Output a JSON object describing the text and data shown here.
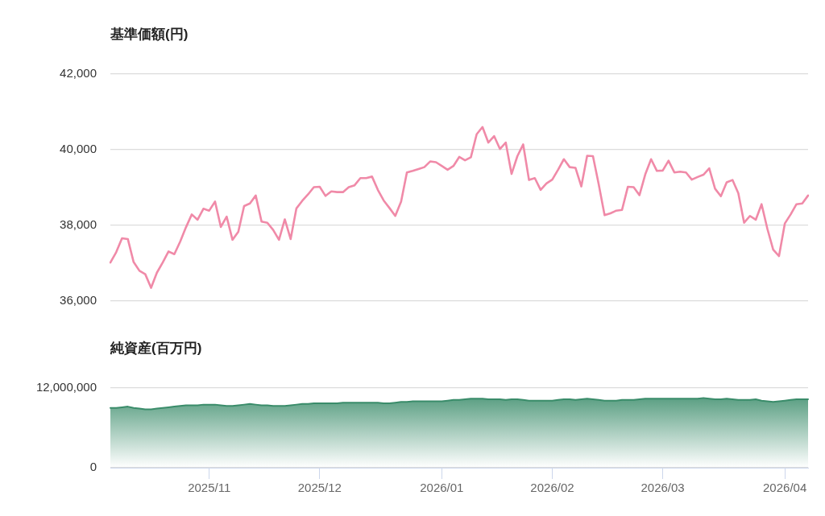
{
  "chart_data": [
    {
      "type": "line",
      "title": "基準価額(円)",
      "categories": [
        null,
        null,
        null,
        null,
        null,
        null,
        null,
        null,
        null,
        null,
        null,
        null,
        null,
        null,
        null,
        null,
        null,
        "2025/11",
        null,
        null,
        null,
        null,
        null,
        null,
        null,
        null,
        null,
        null,
        null,
        null,
        null,
        null,
        null,
        null,
        null,
        null,
        "2025/12",
        null,
        null,
        null,
        null,
        null,
        null,
        null,
        null,
        null,
        null,
        null,
        null,
        null,
        null,
        null,
        null,
        null,
        null,
        null,
        null,
        "2026/01",
        null,
        null,
        null,
        null,
        null,
        null,
        null,
        null,
        null,
        null,
        null,
        null,
        null,
        null,
        null,
        null,
        null,
        null,
        "2026/02",
        null,
        null,
        null,
        null,
        null,
        null,
        null,
        null,
        null,
        null,
        null,
        null,
        null,
        null,
        null,
        null,
        null,
        null,
        "2026/03",
        null,
        null,
        null,
        null,
        null,
        null,
        null,
        null,
        null,
        null,
        null,
        null,
        null,
        null,
        null,
        null,
        null,
        null,
        null,
        null,
        "2026/04",
        null,
        null,
        null,
        null
      ],
      "values": [
        37020,
        37290,
        37660,
        37640,
        37030,
        36800,
        36710,
        36350,
        36750,
        37020,
        37310,
        37240,
        37570,
        37950,
        38290,
        38150,
        38440,
        38390,
        38630,
        37960,
        38230,
        37620,
        37830,
        38510,
        38580,
        38790,
        38100,
        38070,
        37880,
        37620,
        38160,
        37640,
        38450,
        38650,
        38820,
        39010,
        39020,
        38780,
        38900,
        38880,
        38880,
        39010,
        39060,
        39250,
        39250,
        39290,
        38940,
        38660,
        38460,
        38250,
        38630,
        39400,
        39440,
        39490,
        39540,
        39690,
        39670,
        39570,
        39470,
        39570,
        39810,
        39720,
        39800,
        40410,
        40600,
        40190,
        40360,
        40020,
        40190,
        39360,
        39830,
        40140,
        39200,
        39250,
        38940,
        39110,
        39210,
        39470,
        39750,
        39540,
        39520,
        39030,
        39840,
        39830,
        39080,
        38270,
        38320,
        38390,
        38410,
        39020,
        39010,
        38800,
        39350,
        39750,
        39440,
        39450,
        39710,
        39400,
        39420,
        39400,
        39210,
        39280,
        39340,
        39510,
        38970,
        38770,
        39140,
        39200,
        38850,
        38070,
        38250,
        38150,
        38560,
        37910,
        37360,
        37190,
        38050,
        38290,
        38560,
        38580,
        38790
      ],
      "color": "#f08aa8",
      "marker": "none",
      "ylim": [
        36000,
        42000
      ],
      "yticks": [
        {
          "value": 36000,
          "label": "36,000"
        },
        {
          "value": 38000,
          "label": "38,000"
        },
        {
          "value": 40000,
          "label": "40,000"
        },
        {
          "value": 42000,
          "label": "42,000"
        }
      ],
      "grid": "y",
      "tick_labels": "y"
    },
    {
      "type": "area",
      "title": "純資産(百万円)",
      "categories": [
        null,
        null,
        null,
        null,
        null,
        null,
        null,
        null,
        null,
        null,
        null,
        null,
        null,
        null,
        null,
        null,
        null,
        "2025/11",
        null,
        null,
        null,
        null,
        null,
        null,
        null,
        null,
        null,
        null,
        null,
        null,
        null,
        null,
        null,
        null,
        null,
        null,
        "2025/12",
        null,
        null,
        null,
        null,
        null,
        null,
        null,
        null,
        null,
        null,
        null,
        null,
        null,
        null,
        null,
        null,
        null,
        null,
        null,
        null,
        "2026/01",
        null,
        null,
        null,
        null,
        null,
        null,
        null,
        null,
        null,
        null,
        null,
        null,
        null,
        null,
        null,
        null,
        null,
        null,
        "2026/02",
        null,
        null,
        null,
        null,
        null,
        null,
        null,
        null,
        null,
        null,
        null,
        null,
        null,
        null,
        null,
        null,
        null,
        null,
        "2026/03",
        null,
        null,
        null,
        null,
        null,
        null,
        null,
        null,
        null,
        null,
        null,
        null,
        null,
        null,
        null,
        null,
        null,
        null,
        null,
        null,
        "2026/04",
        null,
        null,
        null,
        null
      ],
      "values": [
        9000000,
        9000000,
        9100000,
        9200000,
        9000000,
        8900000,
        8800000,
        8800000,
        8900000,
        9000000,
        9100000,
        9200000,
        9300000,
        9400000,
        9400000,
        9400000,
        9500000,
        9500000,
        9500000,
        9400000,
        9300000,
        9300000,
        9400000,
        9500000,
        9600000,
        9500000,
        9400000,
        9400000,
        9300000,
        9300000,
        9300000,
        9400000,
        9500000,
        9600000,
        9600000,
        9700000,
        9700000,
        9700000,
        9700000,
        9700000,
        9800000,
        9800000,
        9800000,
        9800000,
        9800000,
        9800000,
        9800000,
        9700000,
        9700000,
        9800000,
        9900000,
        9900000,
        10000000,
        10000000,
        10000000,
        10000000,
        10000000,
        10000000,
        10100000,
        10200000,
        10200000,
        10300000,
        10400000,
        10400000,
        10400000,
        10300000,
        10300000,
        10300000,
        10200000,
        10300000,
        10300000,
        10200000,
        10100000,
        10100000,
        10100000,
        10100000,
        10100000,
        10200000,
        10300000,
        10300000,
        10200000,
        10300000,
        10400000,
        10300000,
        10200000,
        10100000,
        10100000,
        10100000,
        10200000,
        10200000,
        10200000,
        10300000,
        10400000,
        10400000,
        10400000,
        10400000,
        10400000,
        10400000,
        10400000,
        10400000,
        10400000,
        10400000,
        10500000,
        10400000,
        10300000,
        10300000,
        10400000,
        10300000,
        10200000,
        10200000,
        10200000,
        10300000,
        10100000,
        10000000,
        9900000,
        10000000,
        10100000,
        10200000,
        10300000,
        10300000,
        10300000
      ],
      "color": "#3a8c6a",
      "marker": "none",
      "ylim": [
        0,
        12000000
      ],
      "yticks": [
        0,
        {
          "value": 12000000,
          "label": "12,000,000"
        }
      ],
      "grid": "y"
    }
  ]
}
